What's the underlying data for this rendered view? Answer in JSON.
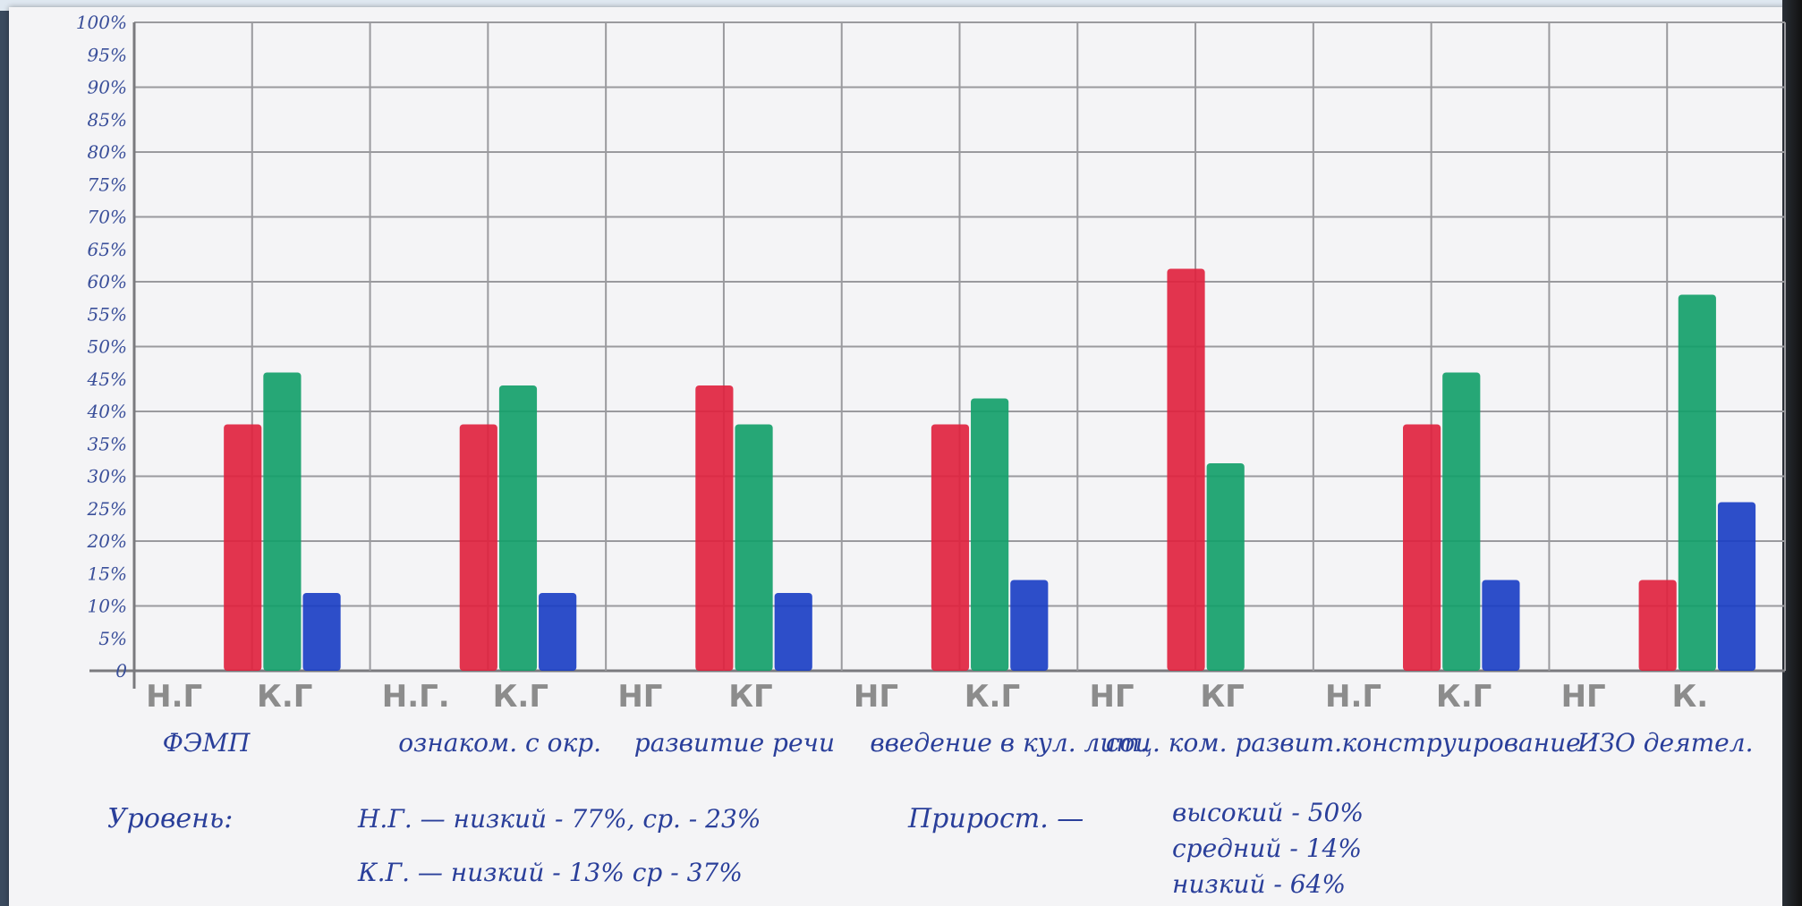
{
  "chart_data": {
    "type": "bar",
    "y_ticks": [
      "0",
      "5%",
      "10%",
      "15%",
      "20%",
      "25%",
      "30%",
      "35%",
      "40%",
      "45%",
      "50%",
      "55%",
      "60%",
      "65%",
      "70%",
      "75%",
      "80%",
      "85%",
      "90%",
      "95%",
      "100%"
    ],
    "ylim": [
      0,
      100
    ],
    "grid": true,
    "groups": [
      {
        "category": "ФЭМП",
        "ng_label": "Н.Г",
        "kg_label": "К.Г",
        "bars": [
          {
            "group": "Н.Г",
            "color": "red",
            "value": 38
          },
          {
            "group": "К.Г",
            "color": "green",
            "value": 46
          },
          {
            "group": "К.Г",
            "color": "blue",
            "value": 12
          }
        ]
      },
      {
        "category": "ознаком. с окр.",
        "ng_label": "Н.Г.",
        "kg_label": "К.Г",
        "bars": [
          {
            "group": "Н.Г",
            "color": "red",
            "value": 38
          },
          {
            "group": "К.Г",
            "color": "green",
            "value": 44
          },
          {
            "group": "К.Г",
            "color": "blue",
            "value": 12
          }
        ]
      },
      {
        "category": "развитие речи",
        "ng_label": "НГ",
        "kg_label": "КГ",
        "bars": [
          {
            "group": "Н.Г",
            "color": "red",
            "value": 44
          },
          {
            "group": "К.Г",
            "color": "green",
            "value": 38
          },
          {
            "group": "К.Г",
            "color": "blue",
            "value": 12
          }
        ]
      },
      {
        "category": "введение в кул. лит.",
        "ng_label": "НГ",
        "kg_label": "К.Г",
        "bars": [
          {
            "group": "Н.Г",
            "color": "red",
            "value": 38
          },
          {
            "group": "К.Г",
            "color": "green",
            "value": 42
          },
          {
            "group": "К.Г",
            "color": "blue",
            "value": 14
          }
        ]
      },
      {
        "category": "соц. ком. развит.",
        "ng_label": "НГ",
        "kg_label": "КГ",
        "bars": [
          {
            "group": "Н.Г",
            "color": "red",
            "value": 62
          },
          {
            "group": "К.Г",
            "color": "green",
            "value": 32
          }
        ]
      },
      {
        "category": "конструирование",
        "ng_label": "Н.Г",
        "kg_label": "К.Г",
        "bars": [
          {
            "group": "Н.Г",
            "color": "red",
            "value": 38
          },
          {
            "group": "К.Г",
            "color": "green",
            "value": 46
          },
          {
            "group": "К.Г",
            "color": "blue",
            "value": 14
          }
        ]
      },
      {
        "category": "ИЗО деятел.",
        "ng_label": "НГ",
        "kg_label": "К.",
        "bars": [
          {
            "group": "Н.Г",
            "color": "red",
            "value": 14
          },
          {
            "group": "К.Г",
            "color": "green",
            "value": 58
          },
          {
            "group": "К.Г",
            "color": "blue",
            "value": 26
          }
        ]
      }
    ],
    "annotations": {
      "level_label": "Уровень:",
      "ng_line": "Н.Г. — низкий - 77%, ср. - 23%",
      "kg_line": "К.Г. — низкий - 13% ср - 37%",
      "growth_label": "Прирост. —",
      "growth_high": "высокий - 50%",
      "growth_mid": "средний - 14%",
      "growth_low": "низкий - 64%"
    },
    "colors": {
      "red": "#e0233f",
      "green": "#14a06a",
      "blue": "#1b3fc4"
    }
  }
}
